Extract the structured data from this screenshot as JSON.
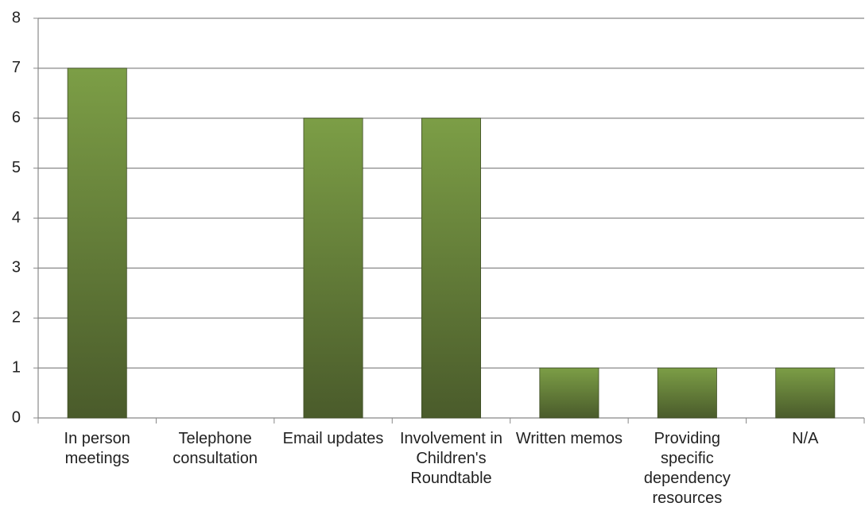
{
  "chart_data": {
    "type": "bar",
    "categories": [
      "In person meetings",
      "Telephone consultation",
      "Email updates",
      "Involvement in Children's Roundtable",
      "Written memos",
      "Providing specific dependency resources",
      "N/A"
    ],
    "values": [
      7,
      0,
      6,
      6,
      1,
      1,
      1
    ],
    "gradient": [
      "#7c9e46",
      "#4a5b2b"
    ],
    "ylim": [
      0,
      8
    ],
    "yticks": [
      0,
      1,
      2,
      3,
      4,
      5,
      6,
      7,
      8
    ],
    "grid": true
  }
}
